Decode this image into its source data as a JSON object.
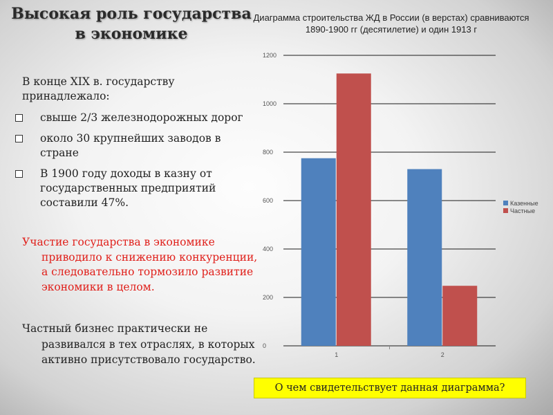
{
  "slide": {
    "title": "Высокая роль государства в экономике",
    "intro": "В конце XIX в. государству принадлежало:",
    "bullets": [
      " свыше 2/3 железнодорожных дорог",
      "около 30 крупнейших заводов в стране",
      "В 1900 году доходы в казну от государственных предприятий составили 47%."
    ],
    "red_paragraph": "Участие государства в экономике приводило к снижению конкуренции, а следовательно тормозило развитие экономики в целом.",
    "private_paragraph": "Частный бизнес практически не развивался в тех отраслях, в которых активно присутствовало государство.",
    "question": "О чем свидетельствует данная диаграмма?",
    "bullet_icon": "square-checkbox-icon",
    "colors": {
      "red_text": "#e0201b",
      "question_bg": "#ffff00"
    }
  },
  "chart_data": {
    "type": "bar",
    "title": "Диаграмма строительства ЖД в России (в верстах) сравниваются 1890-1900 гг (десятилетие) и один 1913 г",
    "categories": [
      "1",
      "2"
    ],
    "series": [
      {
        "name": "Казенные",
        "values": [
          775,
          730
        ],
        "color": "#4f81bd"
      },
      {
        "name": "Частные",
        "values": [
          1125,
          248
        ],
        "color": "#c0504d"
      }
    ],
    "ylim": [
      0,
      1200
    ],
    "yticks": [
      "0",
      "200",
      "400",
      "600",
      "800",
      "1000",
      "1200"
    ],
    "grid": true,
    "legend": "right"
  }
}
